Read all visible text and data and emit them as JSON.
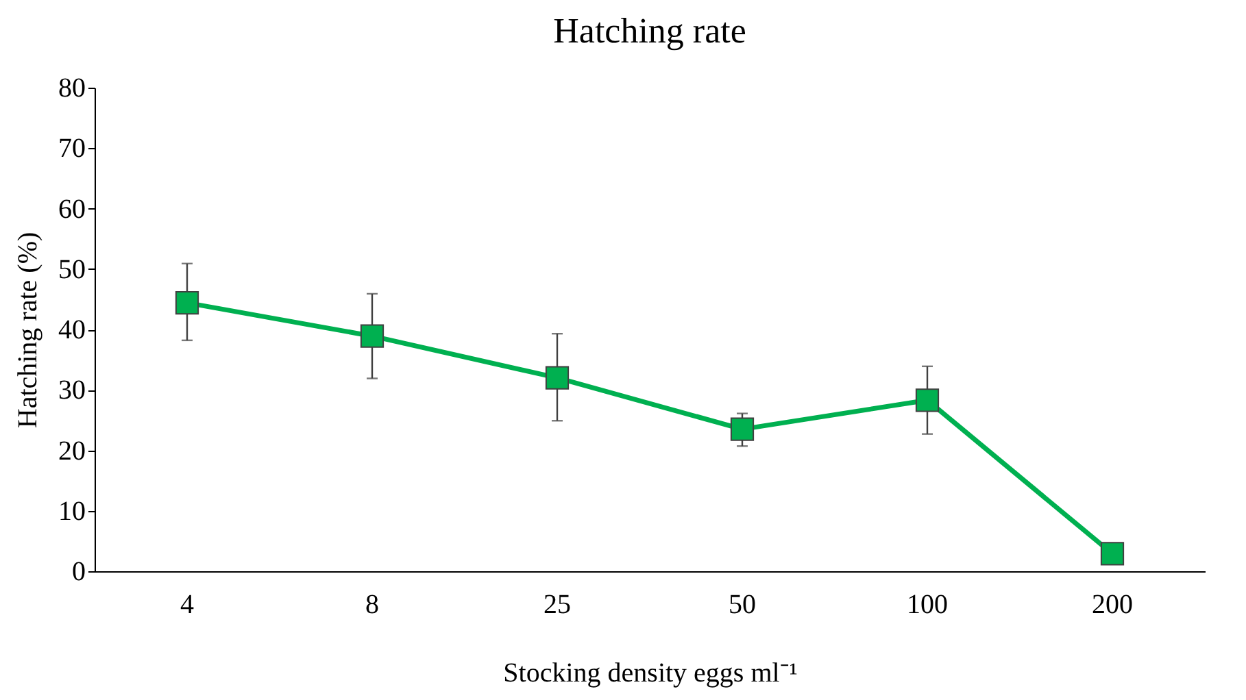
{
  "chart_data": {
    "type": "line",
    "title": "Hatching rate",
    "xlabel": "Stocking density eggs ml⁻¹",
    "ylabel": "Hatching rate (%)",
    "categories": [
      "4",
      "8",
      "25",
      "50",
      "100",
      "200"
    ],
    "series": [
      {
        "color": "#00b050",
        "values": [
          44.4,
          38.9,
          32,
          23.5,
          28.3,
          2.9
        ],
        "errors": [
          [
            38.2,
            50.9
          ],
          [
            31.9,
            45.9
          ],
          [
            24.9,
            39.3
          ],
          [
            20.7,
            26.1
          ],
          [
            22.7,
            33.9
          ],
          null
        ]
      }
    ],
    "ylim": [
      0,
      80
    ],
    "yticks": [
      0,
      10,
      20,
      30,
      40,
      50,
      60,
      70,
      80
    ],
    "grid": false,
    "marker": "square",
    "line_style": "solid"
  }
}
